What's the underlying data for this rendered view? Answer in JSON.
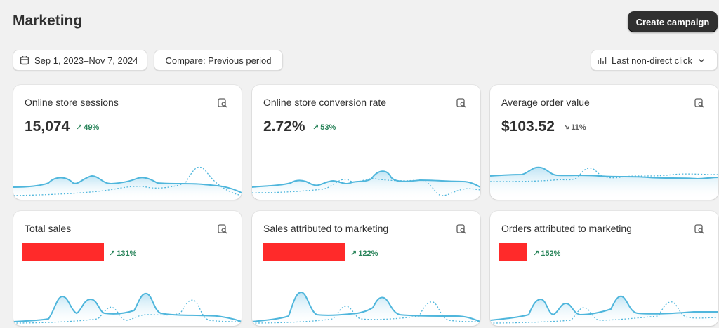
{
  "header": {
    "title": "Marketing",
    "create_button": "Create campaign"
  },
  "filters": {
    "date_range": "Sep 1, 2023–Nov 7, 2024",
    "compare": "Compare: Previous period",
    "attribution": "Last non-direct click"
  },
  "colors": {
    "primary_button": "#303030",
    "positive": "#29845a",
    "chart_line": "#4fb6dc",
    "redaction": "#ff2a2a"
  },
  "cards": [
    {
      "title": "Online store sessions",
      "value": "15,074",
      "delta": "49%",
      "trend": "up",
      "icon": "explore-report-icon"
    },
    {
      "title": "Online store conversion rate",
      "value": "2.72%",
      "delta": "53%",
      "trend": "up",
      "icon": "explore-report-icon"
    },
    {
      "title": "Average order value",
      "value": "$103.52",
      "delta": "11%",
      "trend": "down",
      "icon": "explore-report-icon"
    },
    {
      "title": "Total sales",
      "value": "",
      "delta": "131%",
      "trend": "up",
      "icon": "explore-report-icon",
      "value_redacted": true
    },
    {
      "title": "Sales attributed to marketing",
      "value": "",
      "delta": "122%",
      "trend": "up",
      "icon": "explore-report-icon",
      "value_redacted": true
    },
    {
      "title": "Orders attributed to marketing",
      "value": "",
      "delta": "152%",
      "trend": "up",
      "icon": "explore-report-icon",
      "value_redacted": true
    }
  ]
}
